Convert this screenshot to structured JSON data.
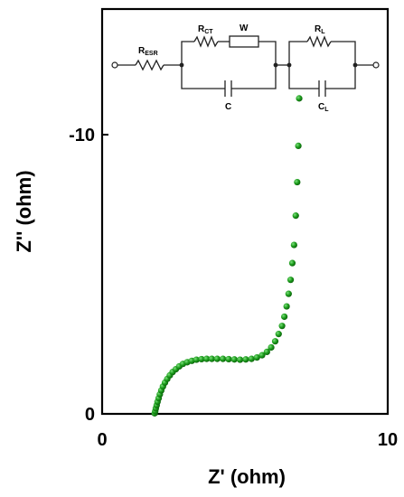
{
  "chart_data": {
    "type": "scatter",
    "title": "",
    "xlabel": "Z'  (ohm)",
    "ylabel": "Z''  (ohm)",
    "xlim": [
      0,
      10
    ],
    "ylim": [
      0,
      -14.5
    ],
    "x_ticks": [
      {
        "value": 0,
        "label": "0"
      },
      {
        "value": 10,
        "label": "10"
      }
    ],
    "y_ticks": [
      {
        "value": 0,
        "label": "0"
      },
      {
        "value": -10,
        "label": "-10"
      }
    ],
    "marker_color": "#1a9a1a",
    "series": [
      {
        "name": "",
        "x": [
          1.84,
          1.86,
          1.88,
          1.91,
          1.94,
          1.98,
          2.02,
          2.07,
          2.13,
          2.2,
          2.28,
          2.37,
          2.47,
          2.58,
          2.7,
          2.83,
          2.98,
          3.14,
          3.3,
          3.48,
          3.66,
          3.84,
          4.03,
          4.23,
          4.43,
          4.63,
          4.83,
          5.03,
          5.23,
          5.42,
          5.6,
          5.77,
          5.92,
          6.06,
          6.18,
          6.3,
          6.38,
          6.46,
          6.53,
          6.6,
          6.66,
          6.72,
          6.78,
          6.83,
          6.87,
          6.9
        ],
        "y": [
          -0.02,
          -0.1,
          -0.2,
          -0.31,
          -0.43,
          -0.56,
          -0.7,
          -0.84,
          -0.98,
          -1.12,
          -1.25,
          -1.38,
          -1.5,
          -1.6,
          -1.7,
          -1.79,
          -1.85,
          -1.9,
          -1.94,
          -1.96,
          -1.97,
          -1.97,
          -1.97,
          -1.97,
          -1.96,
          -1.95,
          -1.94,
          -1.95,
          -1.97,
          -2.02,
          -2.1,
          -2.22,
          -2.38,
          -2.6,
          -2.86,
          -3.15,
          -3.48,
          -3.85,
          -4.3,
          -4.8,
          -5.4,
          -6.05,
          -7.1,
          -8.3,
          -9.6,
          -11.3
        ]
      }
    ],
    "legend": "none",
    "grid": false,
    "inset": {
      "type": "equivalent-circuit",
      "labels": {
        "r_esr": "R",
        "r_esr_sub": "ESR",
        "r_ct": "R",
        "r_ct_sub": "CT",
        "w": "W",
        "c": "C",
        "r_l": "R",
        "r_l_sub": "L",
        "c_l": "C",
        "c_l_sub": "L"
      }
    }
  }
}
